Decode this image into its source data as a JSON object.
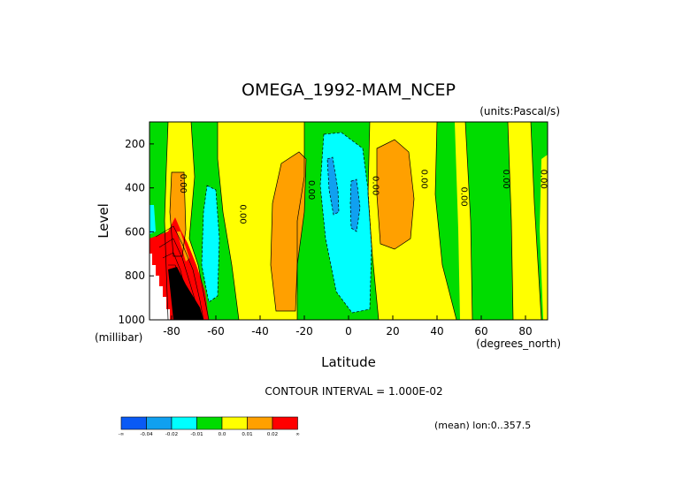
{
  "chart_data": {
    "type": "heatmap",
    "title": "OMEGA_1992-MAM_NCEP",
    "units_label": "(units:Pascal/s)",
    "xlabel": "Latitude",
    "ylabel": "Level",
    "x_units_label": "(degrees_north)",
    "y_units_label": "(millibar)",
    "xlim": [
      -90,
      90
    ],
    "ylim": [
      1000,
      100
    ],
    "x_ticks": [
      -80,
      -60,
      -40,
      -20,
      0,
      20,
      40,
      60,
      80
    ],
    "x_tick_labels": [
      "-80",
      "-60",
      "-40",
      "-20",
      "0",
      "20",
      "40",
      "60",
      "80"
    ],
    "y_ticks": [
      200,
      400,
      600,
      800,
      1000
    ],
    "y_tick_labels": [
      "200",
      "400",
      "600",
      "800",
      "1000"
    ],
    "contour_interval_text": "CONTOUR INTERVAL = 1.000E-02",
    "mean_text": "(mean) lon:0..357.5",
    "contour_labels": [
      {
        "lat": -76,
        "lev": 380,
        "text": "0.00"
      },
      {
        "lat": -49,
        "lev": 520,
        "text": "0.00"
      },
      {
        "lat": -18,
        "lev": 410,
        "text": "0.00"
      },
      {
        "lat": 11,
        "lev": 390,
        "text": "0.00"
      },
      {
        "lat": 33,
        "lev": 360,
        "text": "0.00"
      },
      {
        "lat": 51,
        "lev": 440,
        "text": "0.00"
      },
      {
        "lat": 70,
        "lev": 360,
        "text": "0.00"
      },
      {
        "lat": 87,
        "lev": 360,
        "text": "0.00"
      }
    ],
    "colorbar": {
      "colors": [
        "#0a5af5",
        "#10a0f0",
        "#00ffff",
        "#00dc00",
        "#ffff00",
        "#ffa000",
        "#ff0000"
      ],
      "labels": [
        "-∞",
        "-0.04",
        "-0.02",
        "-0.01",
        "0.0",
        "0.01",
        "0.02",
        "∞"
      ]
    },
    "colors": {
      "strong_negative": "#10a0f0",
      "negative": "#00ffff",
      "weak_negative": "#00dc00",
      "weak_positive": "#ffff00",
      "positive": "#ffa000",
      "strong_positive": "#ff0000",
      "extreme": "#000000",
      "missing": "#ffffff"
    }
  }
}
